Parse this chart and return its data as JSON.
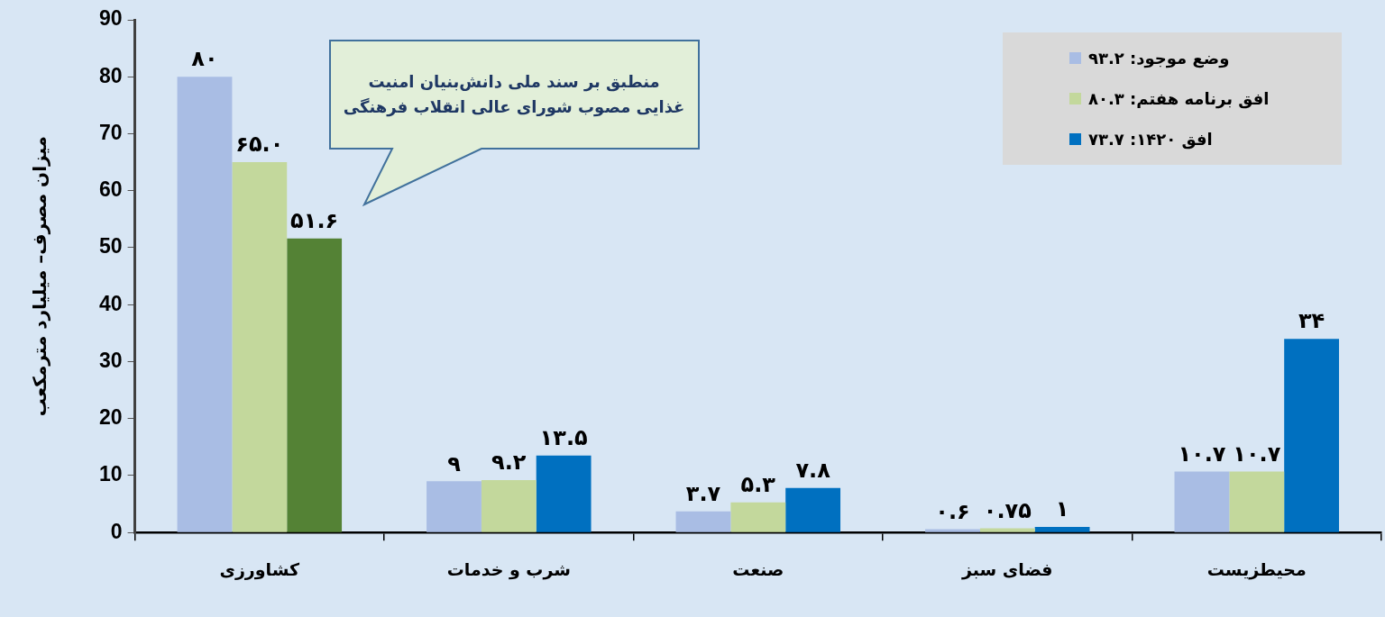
{
  "chart_data": {
    "type": "bar",
    "ylabel": "میزان مصرف– میلیارد مترمکعب",
    "categories": [
      "کشاورزی",
      "شرب و خدمات",
      "صنعت",
      "فضای سبز",
      "محیطزیست"
    ],
    "series": [
      {
        "name": "وضع موجود: ۹۳.۲",
        "color": "#a9bde4",
        "values": [
          80,
          9,
          3.7,
          0.6,
          10.7
        ],
        "value_labels": [
          "۸۰",
          "۹",
          "۳.۷",
          "۰.۶",
          "۱۰.۷"
        ]
      },
      {
        "name": "افق برنامه هفتم: ۸۰.۳",
        "color": "#c3d89c",
        "values": [
          65.0,
          9.2,
          5.3,
          0.75,
          10.7
        ],
        "value_labels": [
          "۶۵.۰",
          "۹.۲",
          "۵.۳",
          "۰.۷۵",
          "۱۰.۷"
        ]
      },
      {
        "name": "افق ۱۴۲۰: ۷۳.۷",
        "color": "#0070c0",
        "colors": [
          "#548235",
          "#0070c0",
          "#0070c0",
          "#0070c0",
          "#0070c0"
        ],
        "values": [
          51.6,
          13.5,
          7.8,
          1,
          34
        ],
        "value_labels": [
          "۵۱.۶",
          "۱۳.۵",
          "۷.۸",
          "۱",
          "۳۴"
        ]
      }
    ],
    "ylim": [
      0,
      90
    ],
    "yticks": [
      0,
      10,
      20,
      30,
      40,
      50,
      60,
      70,
      80,
      90
    ],
    "grid": false,
    "legend": "top right",
    "annotations": [
      "منطبق بر سند ملی دانش‌بنیان امنیت\nغذایی مصوب شورای عالی انقلاب فرهنگی"
    ]
  }
}
